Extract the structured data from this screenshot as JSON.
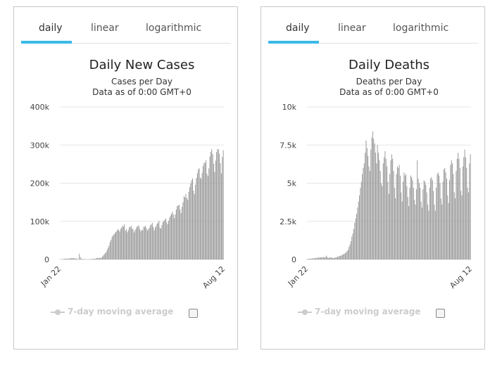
{
  "panels": [
    {
      "tabs": [
        "daily",
        "linear",
        "logarithmic"
      ],
      "active_tab": "daily",
      "legend_label": "7-day moving average",
      "legend_checked": false,
      "chart_data": {
        "type": "bar",
        "title": "Daily New Cases",
        "subtitle_1": "Cases per Day",
        "subtitle_2": "Data as of 0:00 GMT+0",
        "x_start_label": "Jan 22",
        "x_end_label": "Aug 12",
        "ylim": [
          0,
          400000
        ],
        "y_ticks": [
          0,
          100000,
          200000,
          300000,
          400000
        ],
        "y_tick_labels": [
          "0",
          "100k",
          "200k",
          "300k",
          "400k"
        ],
        "grid": true,
        "bar_color": "#999999",
        "values": [
          600,
          600,
          700,
          900,
          1500,
          2100,
          2600,
          2000,
          2100,
          2600,
          2800,
          3200,
          3900,
          3700,
          3200,
          3400,
          2700,
          2000,
          2100,
          400,
          15100,
          6500,
          1900,
          1800,
          1400,
          700,
          900,
          600,
          600,
          600,
          1000,
          700,
          1100,
          1500,
          1500,
          2100,
          1700,
          2400,
          3900,
          4000,
          4000,
          4100,
          3900,
          5000,
          7600,
          10800,
          13800,
          16700,
          19900,
          25600,
          31000,
          37200,
          46100,
          51600,
          59000,
          63000,
          65600,
          69100,
          72200,
          75200,
          79600,
          77400,
          73600,
          80300,
          84100,
          88300,
          86300,
          92100,
          75500,
          79600,
          71400,
          77100,
          84500,
          85800,
          88400,
          81400,
          79100,
          70800,
          76300,
          80700,
          86000,
          87600,
          89300,
          79900,
          74500,
          77600,
          76500,
          85900,
          85600,
          88600,
          81400,
          75700,
          79900,
          83200,
          89300,
          92200,
          96200,
          85600,
          76500,
          83600,
          88200,
          93900,
          96500,
          101600,
          83400,
          80900,
          90200,
          97800,
          101400,
          104200,
          107100,
          97600,
          92300,
          101500,
          109600,
          115100,
          119800,
          125300,
          118000,
          108400,
          118500,
          131200,
          140400,
          141200,
          143600,
          130800,
          121500,
          138100,
          150000,
          165600,
          163000,
          171600,
          161300,
          156000,
          177400,
          189600,
          199600,
          207400,
          212800,
          180300,
          171400,
          196300,
          213800,
          226200,
          236200,
          239300,
          215100,
          211500,
          227200,
          245700,
          253700,
          253300,
          260300,
          225200,
          218600,
          238800,
          270000,
          282300,
          289000,
          276200,
          251300,
          229300,
          259000,
          281800,
          289500,
          288600,
          277500,
          252100,
          225800,
          269100,
          286300
        ]
      }
    },
    {
      "tabs": [
        "daily",
        "linear",
        "logarithmic"
      ],
      "active_tab": "daily",
      "legend_label": "7-day moving average",
      "legend_checked": false,
      "chart_data": {
        "type": "bar",
        "title": "Daily Deaths",
        "subtitle_1": "Deaths per Day",
        "subtitle_2": "Data as of 0:00 GMT+0",
        "x_start_label": "Jan 22",
        "x_end_label": "Aug 12",
        "ylim": [
          0,
          10000
        ],
        "y_ticks": [
          0,
          2500,
          5000,
          7500,
          10000
        ],
        "y_tick_labels": [
          "0",
          "2.5k",
          "5k",
          "7.5k",
          "10k"
        ],
        "grid": true,
        "bar_color": "#999999",
        "values": [
          40,
          40,
          50,
          50,
          60,
          70,
          70,
          80,
          90,
          100,
          110,
          120,
          130,
          130,
          140,
          140,
          150,
          150,
          160,
          150,
          250,
          170,
          120,
          110,
          130,
          140,
          120,
          90,
          110,
          110,
          140,
          150,
          180,
          200,
          230,
          250,
          270,
          300,
          350,
          380,
          420,
          480,
          560,
          640,
          840,
          980,
          1200,
          1500,
          1700,
          2000,
          2400,
          2700,
          3000,
          3400,
          3800,
          4200,
          4700,
          5100,
          5600,
          6000,
          6300,
          7000,
          7800,
          7300,
          6800,
          6100,
          5800,
          7200,
          8000,
          8400,
          7900,
          7600,
          7000,
          6300,
          7500,
          7000,
          6500,
          5800,
          5000,
          4800,
          6300,
          6700,
          7100,
          6600,
          6100,
          5100,
          4300,
          5600,
          6500,
          6900,
          6600,
          5800,
          4700,
          4000,
          5600,
          6100,
          6000,
          6200,
          5500,
          4400,
          3800,
          5100,
          5700,
          5500,
          5600,
          4800,
          4100,
          3500,
          4700,
          5500,
          5400,
          5200,
          4700,
          3900,
          3600,
          4600,
          6500,
          5300,
          5000,
          4700,
          3800,
          3400,
          4600,
          5200,
          5100,
          4900,
          4400,
          3600,
          3200,
          4700,
          5300,
          5400,
          5200,
          4500,
          3600,
          3200,
          4700,
          5600,
          5700,
          5500,
          5000,
          4000,
          3600,
          5100,
          5900,
          6000,
          5700,
          5300,
          4200,
          3700,
          5200,
          6200,
          6500,
          6300,
          5600,
          4400,
          4000,
          5800,
          6600,
          7000,
          6600,
          6000,
          4500,
          4200,
          6100,
          6700,
          7200,
          6700,
          6000,
          4700,
          4400,
          6300,
          6900
        ]
      }
    }
  ]
}
